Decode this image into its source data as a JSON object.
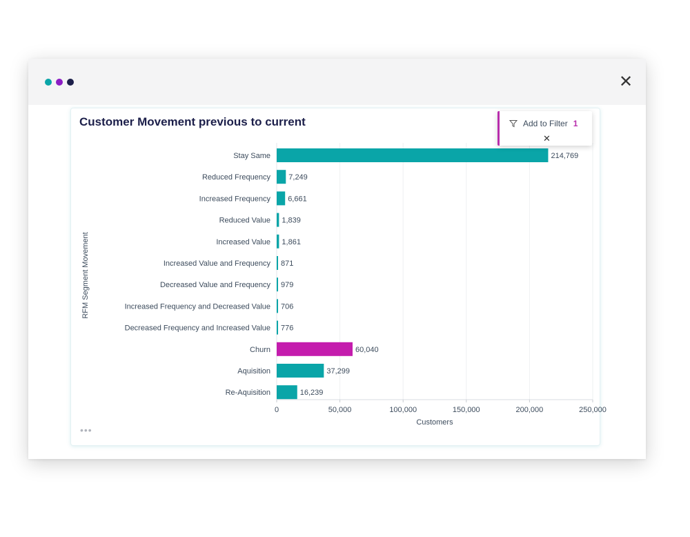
{
  "window": {
    "dots": [
      {
        "name": "dot-teal",
        "color": "#0aa5a8"
      },
      {
        "name": "dot-purple",
        "color": "#8b1dc4"
      },
      {
        "name": "dot-navy",
        "color": "#1c1f4a"
      }
    ],
    "close_icon": "close-icon"
  },
  "card": {
    "title": "Customer Movement previous to current",
    "more_icon": "more-horizontal-icon"
  },
  "filter_popup": {
    "label": "Add to Filter",
    "count": "1",
    "icon": "funnel-icon",
    "close_icon": "close-icon"
  },
  "colors": {
    "primary_bar": "#0aa5a8",
    "highlight_bar": "#c41cad",
    "accent": "#b82dac"
  },
  "chart_data": {
    "type": "bar",
    "orientation": "horizontal",
    "xlabel": "Customers",
    "ylabel": "RFM Segment Movement",
    "xlim": [
      0,
      250000
    ],
    "xticks": [
      0,
      50000,
      100000,
      150000,
      200000,
      250000
    ],
    "xtick_labels": [
      "0",
      "50,000",
      "100,000",
      "150,000",
      "200,000",
      "250,000"
    ],
    "grid": true,
    "categories": [
      "Stay Same",
      "Reduced Frequency",
      "Increased Frequency",
      "Reduced Value",
      "Increased Value",
      "Increased Value and Frequency",
      "Decreased Value and Frequency",
      "Increased Frequency and Decreased Value",
      "Decreased Frequency and Increased Value",
      "Churn",
      "Aquisition",
      "Re-Aquisition"
    ],
    "values": [
      214769,
      7249,
      6661,
      1839,
      1861,
      871,
      979,
      706,
      776,
      60040,
      37299,
      16239
    ],
    "value_labels": [
      "214,769",
      "7,249",
      "6,661",
      "1,839",
      "1,861",
      "871",
      "979",
      "706",
      "776",
      "60,040",
      "37,299",
      "16,239"
    ],
    "highlighted": [
      "Churn"
    ]
  }
}
